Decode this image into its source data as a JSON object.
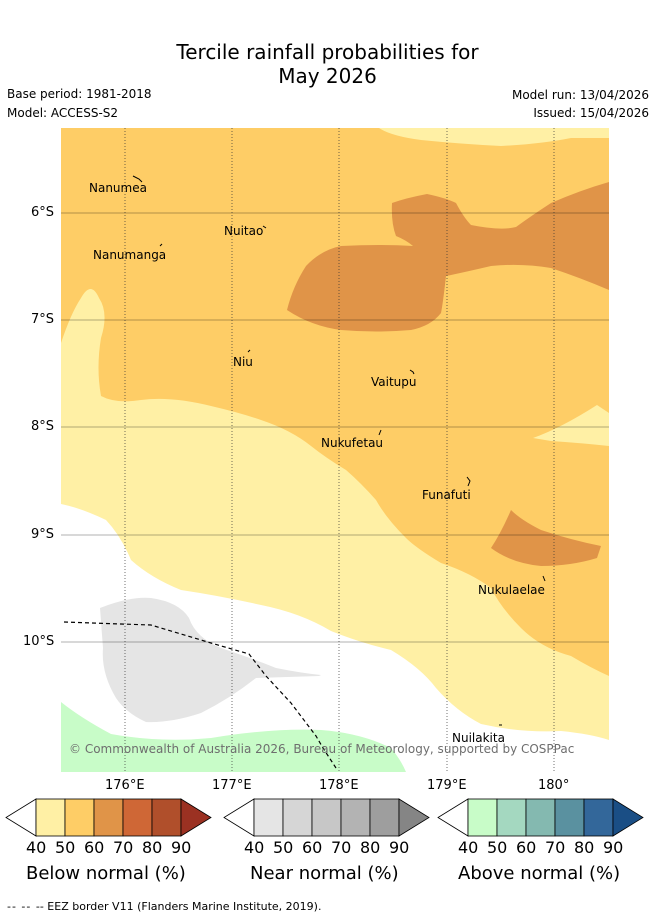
{
  "header": {
    "title_line1": "Tercile rainfall probabilities for",
    "title_line2": "May 2026",
    "base_period": "Base period: 1981-2018",
    "model": "Model: ACCESS-S2",
    "model_run": "Model run: 13/04/2026",
    "issued": "Issued: 15/04/2026"
  },
  "map": {
    "lat_labels": [
      "6°S",
      "7°S",
      "8°S",
      "9°S",
      "10°S"
    ],
    "lon_labels": [
      "176°E",
      "177°E",
      "178°E",
      "179°E",
      "180°"
    ],
    "places": [
      "Nanumea",
      "Nuitao",
      "Nanumanga",
      "Niu",
      "Vaitupu",
      "Nukufetau",
      "Funafuti",
      "Nukulaelae",
      "Nuilakita"
    ],
    "copyright": "© Commonwealth of Australia 2026, Bureau of Meteorology, supported by COSPPac"
  },
  "legend": {
    "below": {
      "label": "Below normal (%)",
      "ticks": [
        "40",
        "50",
        "60",
        "70",
        "80",
        "90"
      ],
      "colors": [
        "#ffffff",
        "#fff0a5",
        "#fecd66",
        "#e09448",
        "#cf6736",
        "#b04f2b",
        "#9b3122"
      ]
    },
    "near": {
      "label": "Near normal (%)",
      "ticks": [
        "40",
        "50",
        "60",
        "70",
        "80",
        "90"
      ],
      "colors": [
        "#ffffff",
        "#e5e5e5",
        "#d6d6d6",
        "#c7c7c7",
        "#b3b3b3",
        "#9e9e9e",
        "#858585"
      ]
    },
    "above": {
      "label": "Above normal (%)",
      "ticks": [
        "40",
        "50",
        "60",
        "70",
        "80",
        "90"
      ],
      "colors": [
        "#ffffff",
        "#c8fcc8",
        "#a4d8c0",
        "#84b9b0",
        "#5a91a0",
        "#33679a",
        "#1a4e85"
      ]
    }
  },
  "footer": {
    "eez_legend": "-- EEZ border V11 (Flanders Marine Institute, 2019)."
  }
}
